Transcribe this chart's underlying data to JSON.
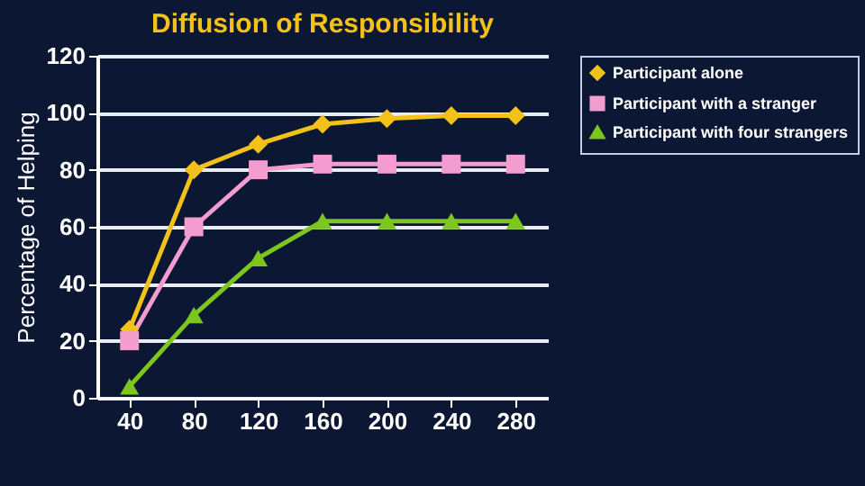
{
  "chart_data": {
    "type": "line",
    "title": "Diffusion of Responsibility",
    "ylabel": "Percentage of Helping",
    "categories": [
      "40",
      "80",
      "120",
      "160",
      "200",
      "240",
      "280"
    ],
    "series": [
      {
        "name": "Participant alone",
        "color": "#f2c21a",
        "marker": "diamond",
        "values": [
          24,
          80,
          89,
          96,
          98,
          99,
          99
        ]
      },
      {
        "name": "Participant with a stranger",
        "color": "#f29ccf",
        "marker": "square",
        "values": [
          20,
          60,
          80,
          82,
          82,
          82,
          82
        ]
      },
      {
        "name": "Participant with four strangers",
        "color": "#7cc61e",
        "marker": "triangle",
        "values": [
          4,
          29,
          49,
          62,
          62,
          62,
          62
        ]
      }
    ],
    "ylim": [
      0,
      120
    ],
    "yticks": [
      0,
      20,
      40,
      60,
      80,
      100,
      120
    ],
    "grid": "y",
    "legend": "right"
  }
}
